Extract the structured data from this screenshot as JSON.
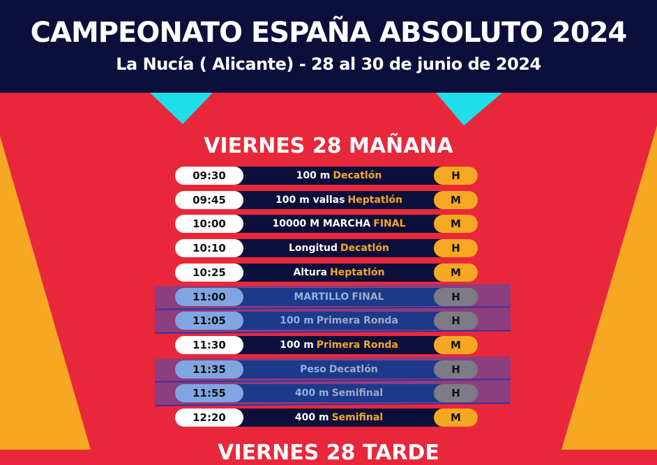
{
  "header": {
    "title": "CAMPEONATO ESPAÑA ABSOLUTO 2024",
    "subtitle": "La Nucía ( Alicante) - 28 al 30 de junio de 2024"
  },
  "sections": [
    {
      "title": "VIERNES 28 MAÑANA",
      "rows": [
        {
          "time": "09:30",
          "event": "100 m",
          "tag": "Decatlón",
          "gender": "H"
        },
        {
          "time": "09:45",
          "event": "100 m vallas",
          "tag": "Heptatlón",
          "gender": "M"
        },
        {
          "time": "10:00",
          "event": "10000 M MARCHA",
          "tag": "FINAL",
          "gender": "M"
        },
        {
          "time": "10:10",
          "event": "Longitud",
          "tag": "Decatlón",
          "gender": "H"
        },
        {
          "time": "10:25",
          "event": "Altura",
          "tag": "Heptatlón",
          "gender": "M"
        },
        {
          "time": "11:00",
          "event": "MARTILLO",
          "tag": "FINAL",
          "gender": "H"
        },
        {
          "time": "11:05",
          "event": "100 m",
          "tag": "Primera Ronda",
          "gender": "H"
        },
        {
          "time": "11:30",
          "event": "100 m",
          "tag": "Primera Ronda",
          "gender": "M"
        },
        {
          "time": "11:35",
          "event": "Peso",
          "tag": "Decatlón",
          "gender": "H"
        },
        {
          "time": "11:55",
          "event": "400 m",
          "tag": "Semifinal",
          "gender": "H"
        },
        {
          "time": "12:20",
          "event": "400 m",
          "tag": "Semifinal",
          "gender": "M"
        }
      ]
    },
    {
      "title": "VIERNES 28 TARDE"
    }
  ]
}
